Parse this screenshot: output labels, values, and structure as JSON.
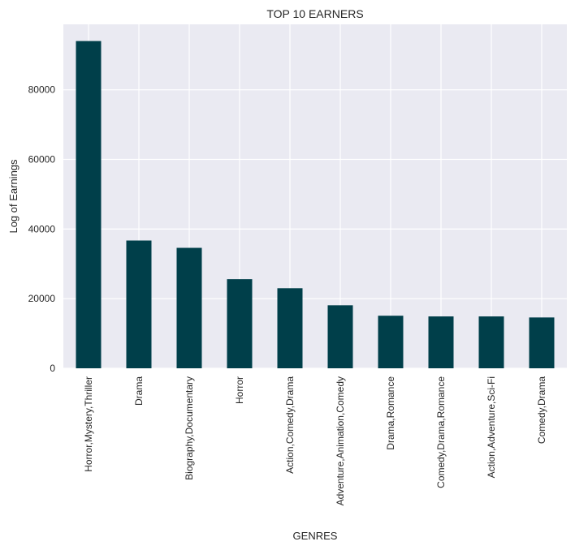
{
  "chart_data": {
    "type": "bar",
    "title": "TOP 10 EARNERS",
    "xlabel": "GENRES",
    "ylabel": "Log of Earnings",
    "categories": [
      "Horror,Mystery,Thriller",
      "Drama",
      "Biography,Documentary",
      "Horror",
      "Action,Comedy,Drama",
      "Adventure,Animation,Comedy",
      "Drama,Romance",
      "Comedy,Drama,Romance",
      "Action,Adventure,Sci-Fi",
      "Comedy,Drama"
    ],
    "values": [
      94000,
      36700,
      34600,
      25600,
      23000,
      18100,
      15100,
      14900,
      14900,
      14600
    ],
    "ylim": [
      0,
      98800
    ],
    "yticks": [
      0,
      20000,
      40000,
      60000,
      80000
    ],
    "bar_color": "#003f4a",
    "plot_background": "#eaeaf2",
    "grid": true,
    "legend": "none"
  }
}
